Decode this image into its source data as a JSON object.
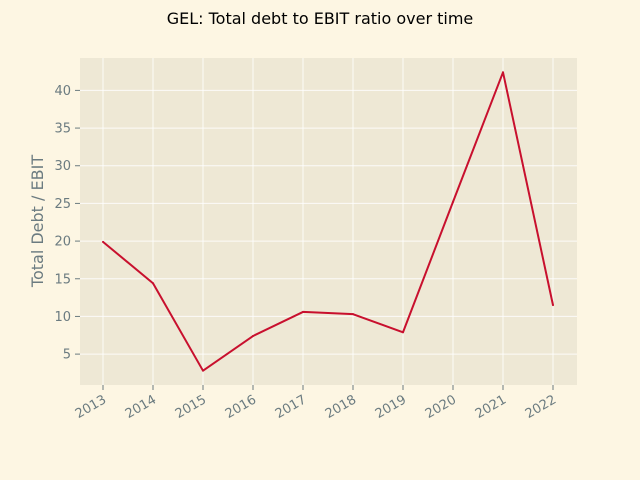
{
  "chart_data": {
    "type": "line",
    "title": "GEL: Total debt to EBIT ratio over time",
    "xlabel": "",
    "ylabel": "Total Debt / EBIT",
    "x": [
      "2013",
      "2014",
      "2015",
      "2016",
      "2017",
      "2018",
      "2019",
      "2020",
      "2021",
      "2022"
    ],
    "series": [
      {
        "values": [
          19.9,
          14.4,
          2.8,
          7.4,
          10.6,
          10.3,
          7.9,
          25.2,
          42.4,
          11.5
        ]
      }
    ],
    "yticks": [
      "5",
      "10",
      "15",
      "20",
      "25",
      "30",
      "35",
      "40"
    ],
    "ylim": [
      0.9,
      44.3
    ],
    "grid": true,
    "legend": "none",
    "colors": {
      "page_background": "#fdf6e3",
      "plot_background": "#eee8d5",
      "line": "#c8102e",
      "tick_text": "#6b7b80"
    }
  }
}
